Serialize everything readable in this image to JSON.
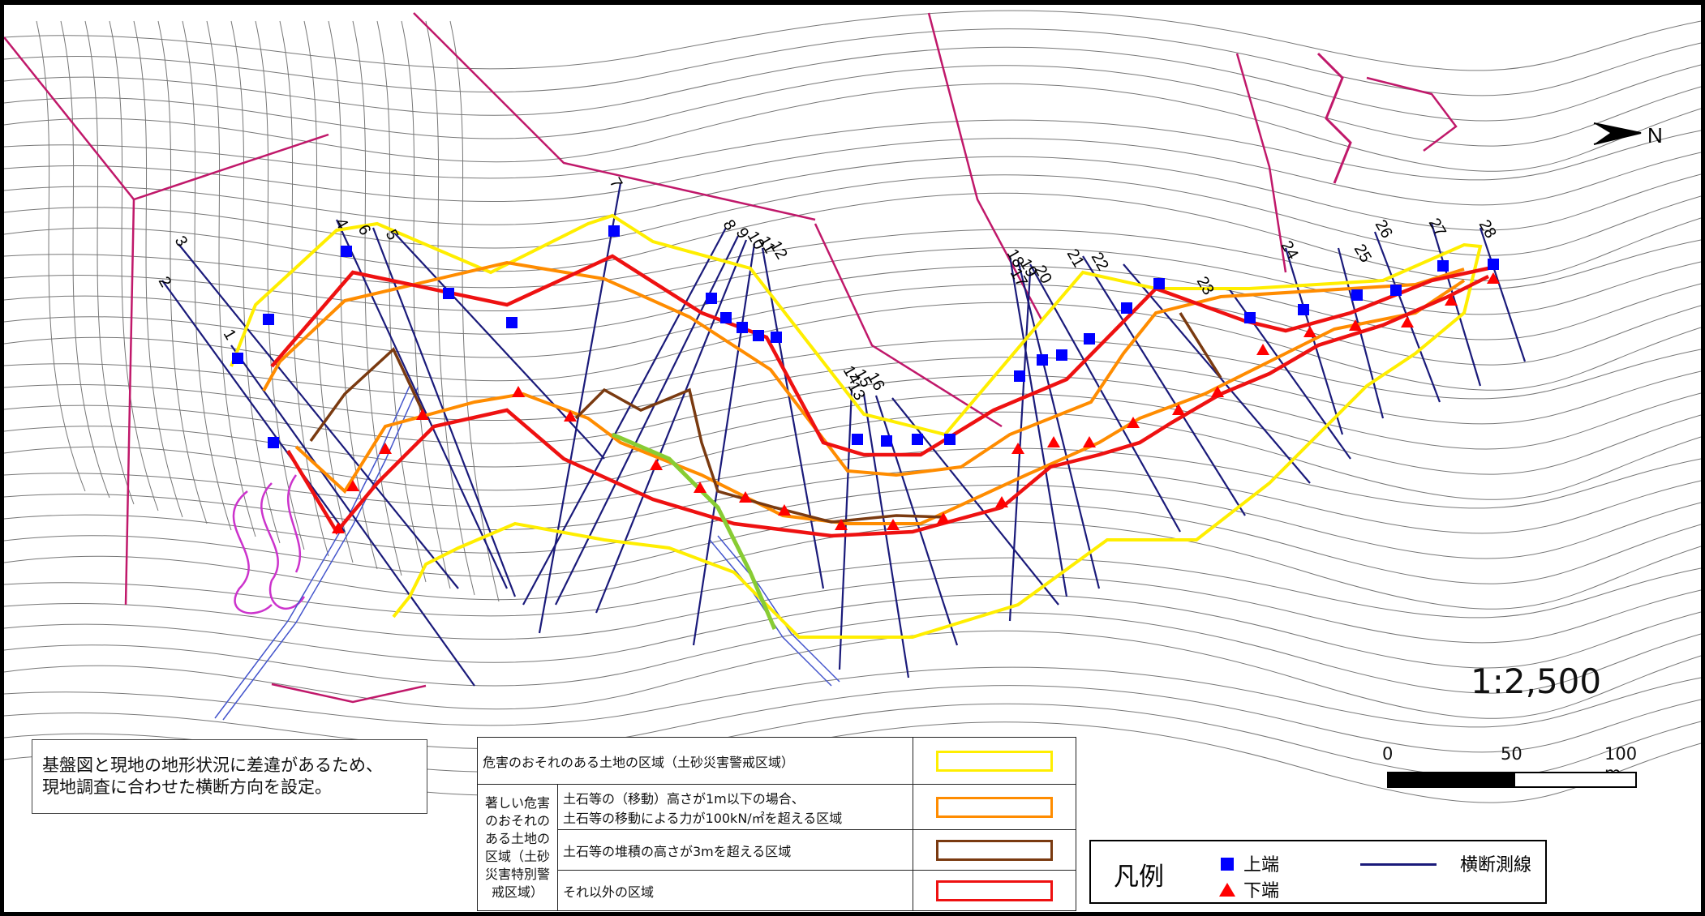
{
  "map": {
    "scale_text": "1:2,500",
    "scalebar": {
      "labels": [
        "0",
        "50",
        "100 m"
      ]
    },
    "north_label": "N",
    "section_labels": [
      "1",
      "2",
      "3",
      "4",
      "6",
      "5",
      "7",
      "8",
      "9",
      "10",
      "11",
      "12",
      "14",
      "15",
      "16",
      "13",
      "17",
      "18",
      "19",
      "20",
      "21",
      "22",
      "23",
      "24",
      "25",
      "26",
      "27",
      "28"
    ]
  },
  "note": {
    "line1": "基盤図と現地の地形状況に差違があるため、",
    "line2": "現地調査に合わせた横断方向を設定。"
  },
  "zone_table": {
    "row1": "危害のおそれのある土地の区域（土砂災害警戒区域）",
    "category": [
      "著しい危害",
      "のおそれの",
      "ある土地の",
      "区域（土砂",
      "災害特別警",
      "戒区域）"
    ],
    "row2a": "土石等の（移動）高さが1m以下の場合、",
    "row2b": "土石等の移動による力が100kN/㎡を超える区域",
    "row3": "土石等の堆積の高さが3mを超える区域",
    "row4": "それ以外の区域"
  },
  "legend": {
    "title": "凡例",
    "top_edge": "上端",
    "bottom_edge": "下端",
    "section_line": "横断測線"
  },
  "colors": {
    "warning_zone": "#ffee00",
    "special_moving": "#ff8c00",
    "special_deposit": "#7a3a10",
    "special_other": "#ee1111",
    "top_marker": "#0000ff",
    "bottom_marker": "#ff0000",
    "section_line": "#1a1a7a",
    "road": "#c0186a"
  }
}
